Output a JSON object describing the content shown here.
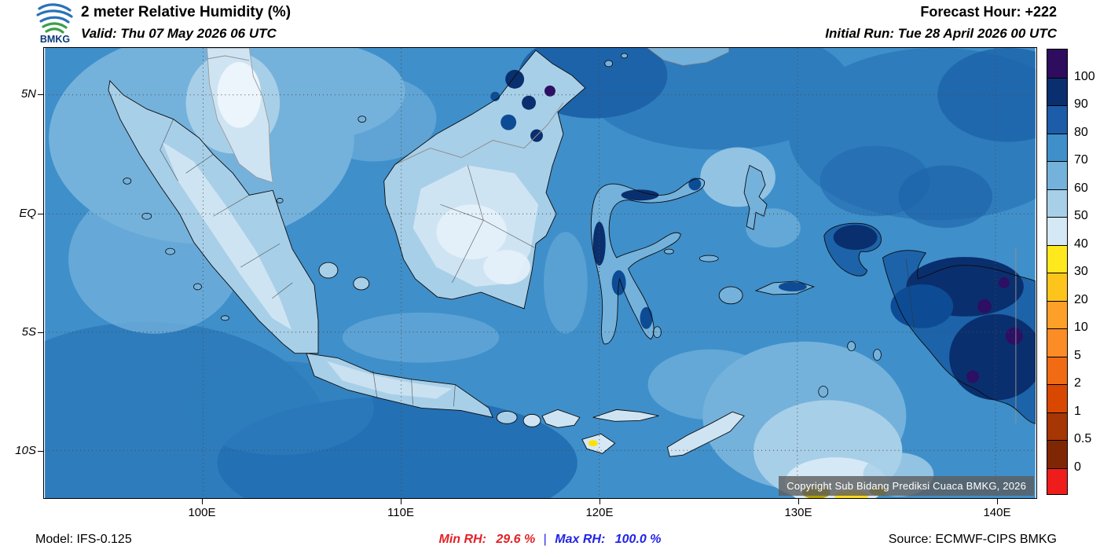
{
  "header": {
    "logo": "BMKG",
    "title": "2 meter Relative Humidity (%)",
    "valid": "Valid: Thu 07 May 2026 06 UTC",
    "forecast_hour": "Forecast Hour: +222",
    "initial_run": "Initial Run: Tue 28 April 2026 00 UTC"
  },
  "map": {
    "lat_labels": [
      "5N",
      "EQ",
      "5S",
      "10S"
    ],
    "lon_labels": [
      "100E",
      "110E",
      "120E",
      "130E",
      "140E"
    ],
    "copyright": "Copyright Sub Bidang Prediksi Cuaca BMKG, 2026"
  },
  "legend": {
    "tick_labels": [
      "100",
      "90",
      "80",
      "70",
      "60",
      "50",
      "40",
      "30",
      "20",
      "10",
      "5",
      "2",
      "1",
      "0.5",
      "0"
    ],
    "colors_top_to_bottom": [
      "#2e0d5e",
      "#0a2f6e",
      "#1c5ca8",
      "#3f8fca",
      "#74b2dc",
      "#a8cfe8",
      "#d5e8f5",
      "#ffe81e",
      "#fdc51c",
      "#fda029",
      "#fb8c26",
      "#f06b13",
      "#d94801",
      "#a63603",
      "#7f2704",
      "#ef1c1c"
    ]
  },
  "footer": {
    "model": "Model: IFS-0.125",
    "min_rh_label": "Min RH:",
    "min_rh_value": "29.6 %",
    "separator": "|",
    "max_rh_label": "Max RH:",
    "max_rh_value": "100.0 %",
    "source": "Source: ECMWF-CIPS BMKG"
  },
  "chart_data": {
    "type": "heatmap",
    "title": "2 meter Relative Humidity (%)",
    "lat_ticks": [
      "5N",
      "EQ",
      "5S",
      "10S"
    ],
    "lon_ticks": [
      "100E",
      "110E",
      "120E",
      "130E",
      "140E"
    ],
    "colorbar_levels": [
      100,
      90,
      80,
      70,
      60,
      50,
      40,
      30,
      20,
      10,
      5,
      2,
      1,
      0.5,
      0
    ],
    "units": "%",
    "min_rh_percent": 29.6,
    "max_rh_percent": 100.0
  }
}
